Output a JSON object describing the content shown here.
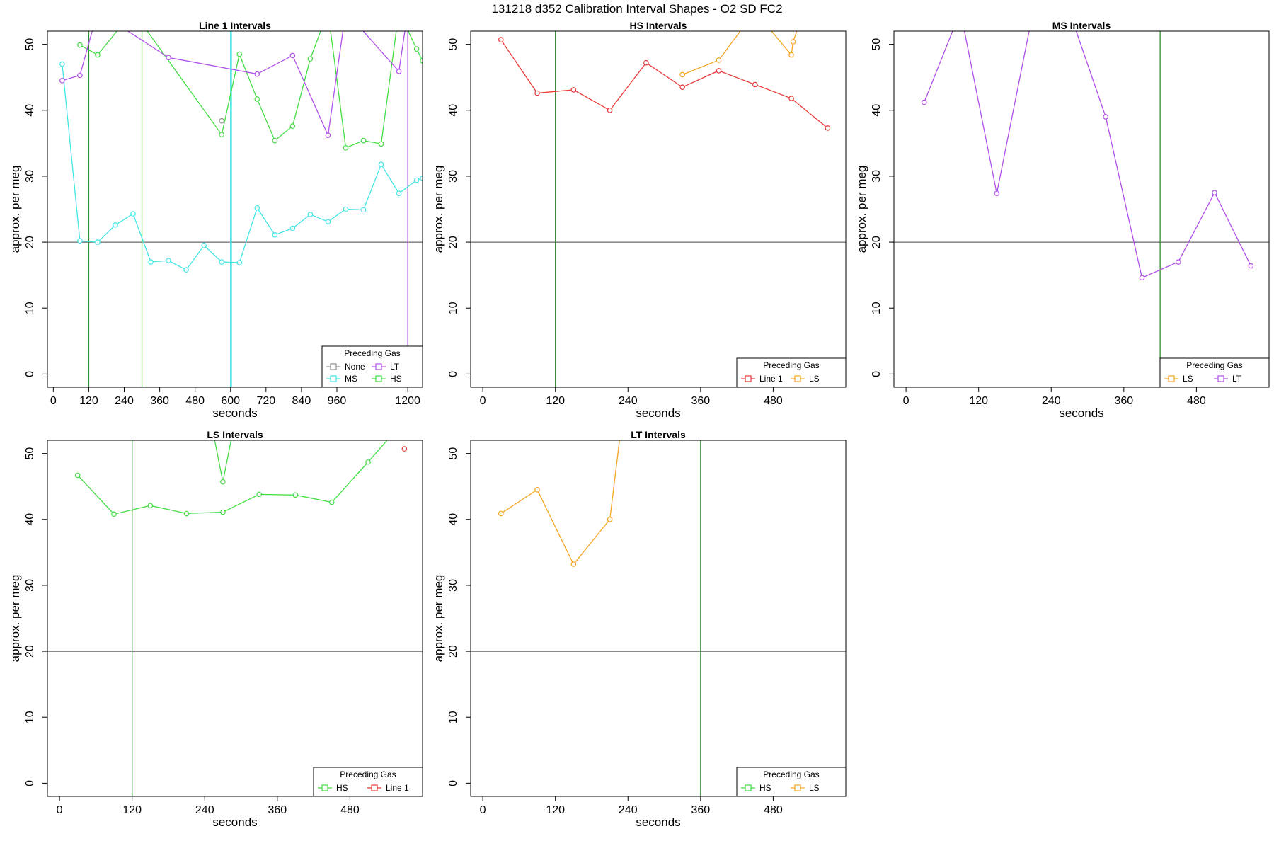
{
  "page_title": "131218   d352   Calibration Interval Shapes - O2 SD FC2",
  "chart_data": [
    {
      "type": "line",
      "title": "Line 1 Intervals",
      "xlabel": "seconds",
      "ylabel": "approx. per meg",
      "xlim": [
        -20,
        1250
      ],
      "ylim": [
        -2,
        52
      ],
      "xticks": [
        0,
        120,
        240,
        360,
        480,
        600,
        720,
        840,
        960,
        1200
      ],
      "yticks": [
        0,
        10,
        20,
        30,
        40,
        50
      ],
      "hlines": [
        20
      ],
      "legend": {
        "title": "Preceding Gas",
        "position": "bottom-right",
        "columns": 2,
        "entries": [
          "None",
          "LT",
          "MS",
          "HS"
        ]
      },
      "vlines": [
        {
          "x": 120,
          "color": "#2e8b2e"
        },
        {
          "x": 300,
          "color": "#44dd44"
        },
        {
          "x": 600,
          "color": "#44e5e5"
        },
        {
          "x": 603,
          "color": "#44e5e5"
        },
        {
          "x": 1200,
          "color": "#b050e8",
          "y_from": 52,
          "y_to": -2
        }
      ],
      "series": [
        {
          "name": "MS",
          "color": "#44e5e5",
          "x": [
            30,
            90,
            150,
            210,
            270,
            330,
            390,
            450,
            510,
            570,
            630,
            690,
            750,
            810,
            870,
            930,
            990,
            1050,
            1110,
            1170,
            1230,
            1250
          ],
          "y": [
            47,
            20.2,
            20,
            22.6,
            24.3,
            17,
            17.2,
            15.8,
            19.5,
            17,
            16.9,
            25.2,
            21.1,
            22.1,
            24.2,
            23.1,
            25,
            24.9,
            31.8,
            27.4,
            29.4,
            29.7
          ]
        },
        {
          "name": "HS",
          "color": "#44dd44",
          "x": [
            90,
            150,
            270,
            570,
            630,
            690,
            750,
            810,
            870,
            930,
            990,
            1050,
            1110,
            1170,
            1230,
            1250
          ],
          "y": [
            49.9,
            48.4,
            55,
            36.3,
            48.5,
            41.7,
            35.4,
            37.6,
            47.8,
            55,
            34.3,
            35.4,
            34.9,
            55,
            49.3,
            47.5
          ]
        },
        {
          "name": "LT",
          "color": "#b050e8",
          "x": [
            30,
            90,
            150,
            390,
            690,
            810,
            930,
            990,
            1170,
            1200
          ],
          "y": [
            44.5,
            45.3,
            55,
            48,
            45.5,
            48.3,
            36.2,
            55,
            45.9,
            55
          ]
        },
        {
          "name": "None",
          "color": "#909090",
          "x": [
            570
          ],
          "y": [
            38.4
          ]
        }
      ]
    },
    {
      "type": "line",
      "title": "HS Intervals",
      "xlabel": "seconds",
      "ylabel": "approx. per meg",
      "xlim": [
        -20,
        600
      ],
      "ylim": [
        -2,
        52
      ],
      "xticks": [
        0,
        120,
        240,
        360,
        480
      ],
      "yticks": [
        0,
        10,
        20,
        30,
        40,
        50
      ],
      "hlines": [
        20
      ],
      "legend": {
        "title": "Preceding Gas",
        "position": "bottom-right",
        "columns": 2,
        "entries": [
          "Line 1",
          "LS"
        ]
      },
      "vlines": [
        {
          "x": 120,
          "color": "#2e8b2e"
        }
      ],
      "series": [
        {
          "name": "Line 1",
          "color": "#e83a3a",
          "x": [
            30,
            90,
            150,
            210,
            270,
            330,
            390,
            450,
            510,
            570
          ],
          "y": [
            50.7,
            42.6,
            43.1,
            40,
            47.2,
            43.5,
            46,
            43.9,
            41.8,
            37.3
          ]
        },
        {
          "name": "LS",
          "color": "#f5a623",
          "x": [
            330,
            390,
            450,
            510,
            513,
            530
          ],
          "y": [
            45.4,
            47.6,
            55,
            48.4,
            50.4,
            55
          ]
        }
      ]
    },
    {
      "type": "line",
      "title": "MS Intervals",
      "xlabel": "seconds",
      "ylabel": "approx. per meg",
      "xlim": [
        -20,
        600
      ],
      "ylim": [
        -2,
        52
      ],
      "xticks": [
        0,
        120,
        240,
        360,
        480
      ],
      "yticks": [
        0,
        10,
        20,
        30,
        40,
        50
      ],
      "hlines": [
        20
      ],
      "legend": {
        "title": "Preceding Gas",
        "position": "bottom-right",
        "columns": 2,
        "entries": [
          "LS",
          "LT"
        ]
      },
      "vlines": [
        {
          "x": 420,
          "color": "#2e8b2e"
        }
      ],
      "series": [
        {
          "name": "LT",
          "color": "#b050e8",
          "x": [
            30,
            90,
            150,
            210,
            270,
            330,
            390,
            450,
            510,
            570
          ],
          "y": [
            41.2,
            55,
            27.4,
            55,
            55,
            39,
            14.6,
            17,
            27.5,
            16.4
          ]
        }
      ]
    },
    {
      "type": "line",
      "title": "LS Intervals",
      "xlabel": "seconds",
      "ylabel": "approx. per meg",
      "xlim": [
        -20,
        600
      ],
      "ylim": [
        -2,
        52
      ],
      "xticks": [
        0,
        120,
        240,
        360,
        480
      ],
      "yticks": [
        0,
        10,
        20,
        30,
        40,
        50
      ],
      "hlines": [
        20
      ],
      "legend": {
        "title": "Preceding Gas",
        "position": "bottom-right",
        "columns": 2,
        "entries": [
          "HS",
          "Line 1"
        ]
      },
      "vlines": [
        {
          "x": 120,
          "color": "#2e8b2e"
        }
      ],
      "series": [
        {
          "name": "HS",
          "color": "#44dd44",
          "x": [
            30,
            90,
            150,
            210,
            270,
            330,
            390,
            450,
            510,
            570
          ],
          "y": [
            46.7,
            40.8,
            42.1,
            40.9,
            41.1,
            43.8,
            43.7,
            42.6,
            48.7,
            55
          ]
        },
        {
          "name": "HS",
          "color": "#44dd44",
          "x": [
            250,
            270,
            290
          ],
          "y": [
            55,
            45.7,
            55
          ]
        },
        {
          "name": "Line 1",
          "color": "#e83a3a",
          "x": [
            570
          ],
          "y": [
            50.7
          ]
        }
      ]
    },
    {
      "type": "line",
      "title": "LT Intervals",
      "xlabel": "seconds",
      "ylabel": "approx. per meg",
      "xlim": [
        -20,
        600
      ],
      "ylim": [
        -2,
        52
      ],
      "xticks": [
        0,
        120,
        240,
        360,
        480
      ],
      "yticks": [
        0,
        10,
        20,
        30,
        40,
        50
      ],
      "hlines": [
        20
      ],
      "legend": {
        "title": "Preceding Gas",
        "position": "bottom-right",
        "columns": 2,
        "entries": [
          "HS",
          "LS"
        ]
      },
      "vlines": [
        {
          "x": 360,
          "color": "#2e8b2e"
        }
      ],
      "series": [
        {
          "name": "LS",
          "color": "#f5a623",
          "x": [
            30,
            90,
            150,
            210,
            230
          ],
          "y": [
            40.9,
            44.5,
            33.2,
            40,
            55
          ]
        }
      ]
    }
  ],
  "legend_colors": {
    "None": "#909090",
    "LT": "#b050e8",
    "MS": "#44e5e5",
    "HS": "#44dd44",
    "Line 1": "#e83a3a",
    "LS": "#f5a623"
  }
}
